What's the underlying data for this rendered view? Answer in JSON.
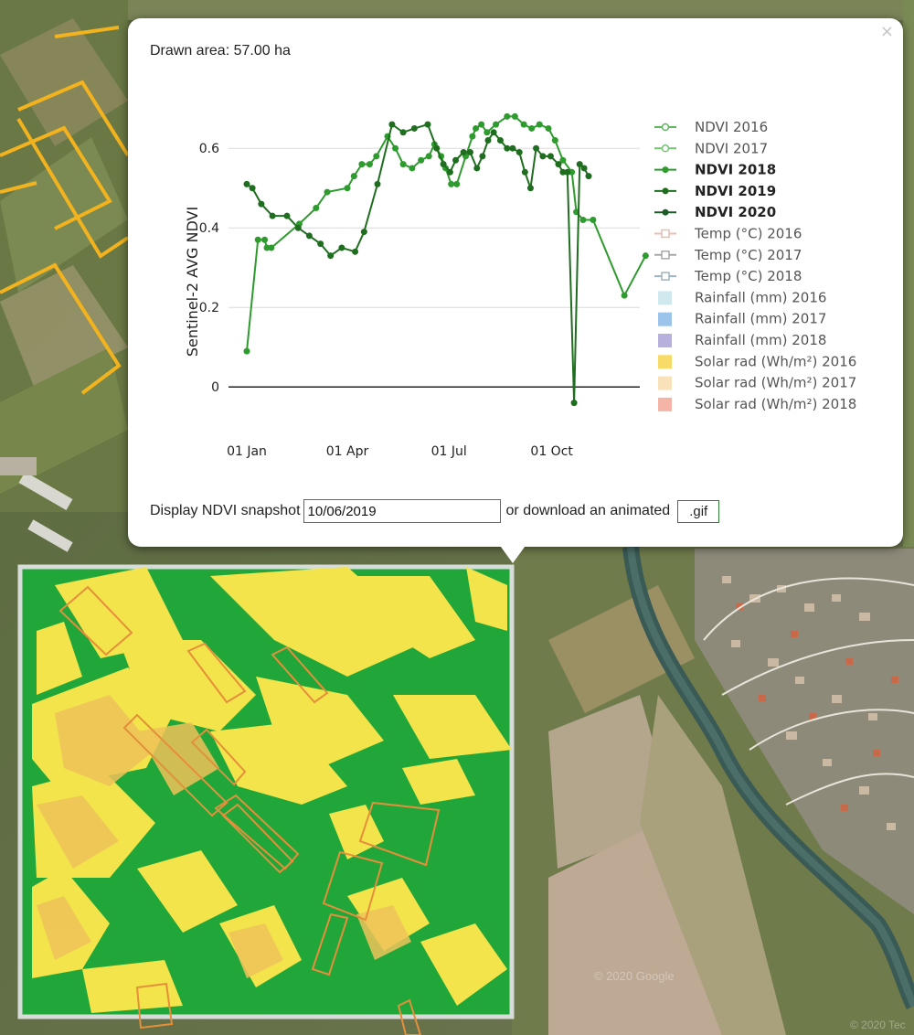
{
  "popup": {
    "drawn_area": "Drawn area: 57.00 ha",
    "close_label": "×",
    "snapshot_label": "Display NDVI snapshot",
    "snapshot_value": "10/06/2019",
    "download_label": "or download an animated",
    "gif_button": ".gif"
  },
  "map": {
    "watermark": "© 2020 Google",
    "watermark2": "© 2020 Tec"
  },
  "chart_data": {
    "type": "line",
    "ylabel": "Sentinel-2 AVG NDVI",
    "xlabel": "",
    "y_ticks": [
      "0",
      "0.2",
      "0.4",
      "0.6"
    ],
    "x_ticks": [
      "01 Jan",
      "01 Apr",
      "01 Jul",
      "01 Oct"
    ],
    "ylim": [
      -0.05,
      0.72
    ],
    "xlim_day_of_year": [
      0,
      360
    ],
    "grid": true,
    "legend_position": "right",
    "legend": [
      {
        "label": "NDVI 2016",
        "color": "#5fb85f",
        "marker": "open-circle",
        "bold": false
      },
      {
        "label": "NDVI 2017",
        "color": "#74c374",
        "marker": "open-circle",
        "bold": false
      },
      {
        "label": "NDVI 2018",
        "color": "#2e9b2e",
        "marker": "dot",
        "bold": true
      },
      {
        "label": "NDVI 2019",
        "color": "#1f6e1f",
        "marker": "dot",
        "bold": true
      },
      {
        "label": "NDVI 2020",
        "color": "#1a5a24",
        "marker": "dot",
        "bold": true
      },
      {
        "label": "Temp (°C) 2016",
        "color": "#e4c1b0",
        "marker": "x",
        "bold": false
      },
      {
        "label": "Temp (°C) 2017",
        "color": "#a8a8a8",
        "marker": "x",
        "bold": false
      },
      {
        "label": "Temp (°C) 2018",
        "color": "#9fb3bf",
        "marker": "x",
        "bold": false
      },
      {
        "label": "Rainfall (mm) 2016",
        "color": "#cfe9ef",
        "marker": "square",
        "bold": false
      },
      {
        "label": "Rainfall (mm) 2017",
        "color": "#9cc4ea",
        "marker": "square",
        "bold": false
      },
      {
        "label": "Rainfall (mm) 2018",
        "color": "#b7b0dc",
        "marker": "square",
        "bold": false
      },
      {
        "label": "Solar rad (Wh/m²) 2016",
        "color": "#f8db66",
        "marker": "square",
        "bold": false
      },
      {
        "label": "Solar rad (Wh/m²) 2017",
        "color": "#f9e1ba",
        "marker": "square",
        "bold": false
      },
      {
        "label": "Solar rad (Wh/m²) 2018",
        "color": "#f4b4a8",
        "marker": "square",
        "bold": false
      }
    ],
    "series": [
      {
        "name": "NDVI 2018",
        "color": "#2e9b2e",
        "x": [
          "01 Jan",
          "11 Jan",
          "17 Jan",
          "19 Jan",
          "23 Jan",
          "17 Feb",
          "04 Mar",
          "14 Mar",
          "01 Apr",
          "07 Apr",
          "14 Apr",
          "21 Apr",
          "27 Apr",
          "07 May",
          "14 May",
          "21 May",
          "29 May",
          "06 Jun",
          "13 Jun",
          "18 Jun",
          "24 Jun",
          "28 Jun",
          "03 Jul",
          "08 Jul",
          "16 Jul",
          "22 Jul",
          "25 Jul",
          "30 Jul",
          "04 Aug",
          "12 Aug",
          "22 Aug",
          "29 Aug",
          "06 Sep",
          "13 Sep",
          "20 Sep",
          "28 Sep",
          "04 Oct",
          "11 Oct",
          "19 Oct",
          "23 Oct",
          "29 Oct",
          "07 Nov",
          "05 Dec",
          "24 Dec"
        ],
        "y": [
          0.09,
          0.37,
          0.37,
          0.35,
          0.35,
          0.41,
          0.45,
          0.49,
          0.5,
          0.53,
          0.56,
          0.56,
          0.58,
          0.63,
          0.6,
          0.56,
          0.55,
          0.57,
          0.58,
          0.61,
          0.58,
          0.55,
          0.51,
          0.51,
          0.58,
          0.63,
          0.65,
          0.66,
          0.64,
          0.66,
          0.68,
          0.68,
          0.66,
          0.65,
          0.66,
          0.65,
          0.62,
          0.57,
          0.54,
          0.44,
          0.42,
          0.42,
          0.23,
          0.33
        ]
      },
      {
        "name": "NDVI 2019",
        "color": "#1f6e1f",
        "x": [
          "01 Jan",
          "06 Jan",
          "14 Jan",
          "24 Jan",
          "06 Feb",
          "16 Feb",
          "26 Feb",
          "08 Mar",
          "17 Mar",
          "27 Mar",
          "08 Apr",
          "16 Apr",
          "28 Apr",
          "11 May",
          "21 May",
          "31 May",
          "12 Jun",
          "20 Jun",
          "26 Jun",
          "02 Jul",
          "07 Jul",
          "14 Jul",
          "20 Jul",
          "26 Jul",
          "31 Jul",
          "05 Aug",
          "10 Aug",
          "16 Aug",
          "22 Aug",
          "27 Aug",
          "02 Sep",
          "07 Sep",
          "12 Sep",
          "17 Sep",
          "23 Sep",
          "30 Sep",
          "07 Oct",
          "11 Oct",
          "15 Oct",
          "21 Oct",
          "26 Oct",
          "30 Oct",
          "03 Nov"
        ],
        "y": [
          0.51,
          0.5,
          0.46,
          0.43,
          0.43,
          0.4,
          0.38,
          0.36,
          0.33,
          0.35,
          0.34,
          0.39,
          0.51,
          0.66,
          0.64,
          0.65,
          0.66,
          0.6,
          0.56,
          0.54,
          0.57,
          0.59,
          0.59,
          0.55,
          0.58,
          0.62,
          0.64,
          0.62,
          0.6,
          0.6,
          0.59,
          0.54,
          0.5,
          0.6,
          0.58,
          0.58,
          0.56,
          0.54,
          0.54,
          -0.04,
          0.56,
          0.55,
          0.53
        ]
      }
    ]
  }
}
